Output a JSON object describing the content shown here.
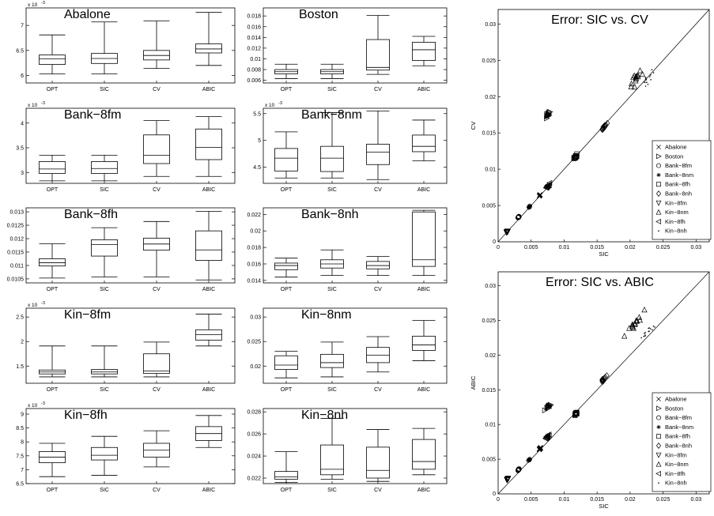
{
  "group_labels": [
    "OPT",
    "SIC",
    "CV",
    "ABIC"
  ],
  "box_panels": [
    {
      "title": "Abalone",
      "exp": "x 10",
      "exp_power": "-3",
      "ylim": [
        5.85,
        7.35
      ],
      "ticks": [
        6,
        6.5,
        7
      ],
      "tick_labels": [
        "6",
        "6.5",
        "7"
      ],
      "boxes": [
        {
          "min": 6.03,
          "q1": 6.22,
          "med": 6.33,
          "q3": 6.41,
          "max": 6.81
        },
        {
          "min": 6.03,
          "q1": 6.24,
          "med": 6.34,
          "q3": 6.44,
          "max": 7.07
        },
        {
          "min": 6.14,
          "q1": 6.31,
          "med": 6.4,
          "q3": 6.5,
          "max": 7.09
        },
        {
          "min": 6.2,
          "q1": 6.45,
          "med": 6.53,
          "q3": 6.63,
          "max": 7.26
        }
      ]
    },
    {
      "title": "Boston",
      "exp": "",
      "exp_power": "",
      "ylim": [
        0.0055,
        0.0195
      ],
      "ticks": [
        0.006,
        0.008,
        0.01,
        0.012,
        0.014,
        0.016,
        0.018
      ],
      "tick_labels": [
        "0.006",
        "0.008",
        "0.01",
        "0.012",
        "0.014",
        "0.016",
        "0.018"
      ],
      "boxes": [
        {
          "min": 0.0063,
          "q1": 0.0072,
          "med": 0.0076,
          "q3": 0.008,
          "max": 0.009
        },
        {
          "min": 0.0063,
          "q1": 0.0072,
          "med": 0.0076,
          "q3": 0.008,
          "max": 0.009
        },
        {
          "min": 0.0071,
          "q1": 0.0079,
          "med": 0.0084,
          "q3": 0.0136,
          "max": 0.0181
        },
        {
          "min": 0.0087,
          "q1": 0.0097,
          "med": 0.0117,
          "q3": 0.0131,
          "max": 0.0142
        }
      ]
    },
    {
      "title": "Bank−8fm",
      "exp": "x 10",
      "exp_power": "-3",
      "ylim": [
        2.78,
        4.3
      ],
      "ticks": [
        3,
        3.5,
        4
      ],
      "tick_labels": [
        "3",
        "3.5",
        "4"
      ],
      "boxes": [
        {
          "min": 2.83,
          "q1": 2.98,
          "med": 3.07,
          "q3": 3.22,
          "max": 3.35
        },
        {
          "min": 2.83,
          "q1": 2.98,
          "med": 3.08,
          "q3": 3.22,
          "max": 3.35
        },
        {
          "min": 2.92,
          "q1": 3.18,
          "med": 3.35,
          "q3": 3.76,
          "max": 4.05
        },
        {
          "min": 2.92,
          "q1": 3.26,
          "med": 3.51,
          "q3": 3.88,
          "max": 4.13
        }
      ]
    },
    {
      "title": "Bank−8nm",
      "exp": "x 10",
      "exp_power": "-3",
      "ylim": [
        4.2,
        5.6
      ],
      "ticks": [
        4.5,
        5,
        5.5
      ],
      "tick_labels": [
        "4.5",
        "5",
        "5.5"
      ],
      "boxes": [
        {
          "min": 4.3,
          "q1": 4.43,
          "med": 4.67,
          "q3": 4.85,
          "max": 5.16
        },
        {
          "min": 4.3,
          "q1": 4.42,
          "med": 4.67,
          "q3": 4.89,
          "max": 5.52
        },
        {
          "min": 4.27,
          "q1": 4.55,
          "med": 4.78,
          "q3": 4.93,
          "max": 5.55
        },
        {
          "min": 4.62,
          "q1": 4.79,
          "med": 4.89,
          "q3": 5.1,
          "max": 5.38
        }
      ]
    },
    {
      "title": "Bank−8fh",
      "exp": "",
      "exp_power": "",
      "ylim": [
        0.01035,
        0.01315
      ],
      "ticks": [
        0.0105,
        0.011,
        0.0115,
        0.012,
        0.0125,
        0.013
      ],
      "tick_labels": [
        "0.0105",
        "0.011",
        "0.0115",
        "0.012",
        "0.0125",
        "0.013"
      ],
      "boxes": [
        {
          "min": 0.01053,
          "q1": 0.01098,
          "med": 0.0111,
          "q3": 0.01125,
          "max": 0.01181
        },
        {
          "min": 0.01057,
          "q1": 0.01135,
          "med": 0.01178,
          "q3": 0.01196,
          "max": 0.01241
        },
        {
          "min": 0.01057,
          "q1": 0.01157,
          "med": 0.0118,
          "q3": 0.01202,
          "max": 0.01264
        },
        {
          "min": 0.01046,
          "q1": 0.01119,
          "med": 0.01158,
          "q3": 0.01229,
          "max": 0.01302
        }
      ]
    },
    {
      "title": "Bank−8nh",
      "exp": "",
      "exp_power": "",
      "ylim": [
        0.0137,
        0.0228
      ],
      "ticks": [
        0.014,
        0.016,
        0.018,
        0.02,
        0.022
      ],
      "tick_labels": [
        "0.014",
        "0.016",
        "0.018",
        "0.02",
        "0.022"
      ],
      "boxes": [
        {
          "min": 0.0144,
          "q1": 0.0153,
          "med": 0.0158,
          "q3": 0.0161,
          "max": 0.0167
        },
        {
          "min": 0.0146,
          "q1": 0.0155,
          "med": 0.016,
          "q3": 0.0165,
          "max": 0.0177
        },
        {
          "min": 0.0146,
          "q1": 0.0154,
          "med": 0.0158,
          "q3": 0.0163,
          "max": 0.0169
        },
        {
          "min": 0.0146,
          "q1": 0.0157,
          "med": 0.0165,
          "q3": 0.0223,
          "max": 0.0225
        }
      ]
    },
    {
      "title": "Kin−8fm",
      "exp": "x 10",
      "exp_power": "-3",
      "ylim": [
        1.15,
        2.68
      ],
      "ticks": [
        1.5,
        2,
        2.5
      ],
      "tick_labels": [
        "1.5",
        "2",
        "2.5"
      ],
      "boxes": [
        {
          "min": 1.28,
          "q1": 1.34,
          "med": 1.38,
          "q3": 1.42,
          "max": 1.91
        },
        {
          "min": 1.28,
          "q1": 1.34,
          "med": 1.38,
          "q3": 1.43,
          "max": 1.91
        },
        {
          "min": 1.28,
          "q1": 1.35,
          "med": 1.4,
          "q3": 1.75,
          "max": 1.99
        },
        {
          "min": 1.91,
          "q1": 2.03,
          "med": 2.14,
          "q3": 2.24,
          "max": 2.56
        }
      ]
    },
    {
      "title": "Kin−8nm",
      "exp": "",
      "exp_power": "",
      "ylim": [
        0.0165,
        0.0318
      ],
      "ticks": [
        0.02,
        0.025,
        0.03
      ],
      "tick_labels": [
        "0.02",
        "0.025",
        "0.03"
      ],
      "boxes": [
        {
          "min": 0.0176,
          "q1": 0.0193,
          "med": 0.0202,
          "q3": 0.0221,
          "max": 0.023
        },
        {
          "min": 0.0178,
          "q1": 0.0197,
          "med": 0.0207,
          "q3": 0.0224,
          "max": 0.0249
        },
        {
          "min": 0.0188,
          "q1": 0.0207,
          "med": 0.0222,
          "q3": 0.0238,
          "max": 0.026
        },
        {
          "min": 0.0211,
          "q1": 0.0232,
          "med": 0.0243,
          "q3": 0.0261,
          "max": 0.0293
        }
      ]
    },
    {
      "title": "Kin−8fh",
      "exp": "x 10",
      "exp_power": "-3",
      "ylim": [
        6.5,
        9.2
      ],
      "ticks": [
        6.5,
        7,
        7.5,
        8,
        8.5,
        9
      ],
      "tick_labels": [
        "6.5",
        "7",
        "7.5",
        "8",
        "8.5",
        "9"
      ],
      "boxes": [
        {
          "min": 6.75,
          "q1": 7.25,
          "med": 7.45,
          "q3": 7.65,
          "max": 7.95
        },
        {
          "min": 6.8,
          "q1": 7.35,
          "med": 7.52,
          "q3": 7.8,
          "max": 8.2
        },
        {
          "min": 7.1,
          "q1": 7.45,
          "med": 7.7,
          "q3": 7.95,
          "max": 8.4
        },
        {
          "min": 7.8,
          "q1": 8.05,
          "med": 8.3,
          "q3": 8.55,
          "max": 8.95
        }
      ]
    },
    {
      "title": "Kin−8nh",
      "exp": "",
      "exp_power": "",
      "ylim": [
        0.0215,
        0.0283
      ],
      "ticks": [
        0.022,
        0.024,
        0.026,
        0.028
      ],
      "tick_labels": [
        "0.022",
        "0.024",
        "0.026",
        "0.028"
      ],
      "boxes": [
        {
          "min": 0.0216,
          "q1": 0.0219,
          "med": 0.0221,
          "q3": 0.0226,
          "max": 0.0244
        },
        {
          "min": 0.0219,
          "q1": 0.0223,
          "med": 0.0228,
          "q3": 0.025,
          "max": 0.0274
        },
        {
          "min": 0.0217,
          "q1": 0.022,
          "med": 0.0227,
          "q3": 0.0248,
          "max": 0.0264
        },
        {
          "min": 0.0223,
          "q1": 0.0228,
          "med": 0.0235,
          "q3": 0.0255,
          "max": 0.0265
        }
      ]
    }
  ],
  "scatter_panels": [
    {
      "title": "Error:  SIC vs. CV",
      "xlabel": "SIC",
      "ylabel": "CV",
      "xlim": [
        0,
        0.032
      ],
      "ylim": [
        0,
        0.032
      ],
      "ticks": [
        0.005,
        0.01,
        0.015,
        0.02,
        0.025,
        0.03
      ],
      "tick_labels": [
        "0.005",
        "0.01",
        "0.015",
        "0.02",
        "0.025",
        "0.03"
      ]
    },
    {
      "title": "Error:  SIC vs. ABIC",
      "xlabel": "SIC",
      "ylabel": "ABIC",
      "xlim": [
        0,
        0.032
      ],
      "ylim": [
        0,
        0.032
      ],
      "ticks": [
        0.005,
        0.01,
        0.015,
        0.02,
        0.025,
        0.03
      ],
      "tick_labels": [
        "0.005",
        "0.01",
        "0.015",
        "0.02",
        "0.025",
        "0.03"
      ]
    }
  ],
  "legend": [
    {
      "symbol": "x",
      "label": "Abalone"
    },
    {
      "symbol": "tri-right",
      "label": "Boston"
    },
    {
      "symbol": "circle",
      "label": "Bank−8fm"
    },
    {
      "symbol": "star",
      "label": "Bank−8nm"
    },
    {
      "symbol": "square",
      "label": "Bank−8fh"
    },
    {
      "symbol": "diamond",
      "label": "Bank−8nh"
    },
    {
      "symbol": "tri-down",
      "label": "Kin−8fm"
    },
    {
      "symbol": "tri-up",
      "label": "Kin−8nm"
    },
    {
      "symbol": "tri-left",
      "label": "Kin−8fh"
    },
    {
      "symbol": "dot",
      "label": "Kin−8nh"
    }
  ],
  "chart_data": [
    {
      "type": "box",
      "title": "Abalone",
      "categories": [
        "OPT",
        "SIC",
        "CV",
        "ABIC"
      ],
      "ylabel": "x 10^-3",
      "series": [
        {
          "stat": "median",
          "values": [
            6.33,
            6.34,
            6.4,
            6.53
          ]
        }
      ]
    },
    {
      "type": "box",
      "title": "Boston",
      "categories": [
        "OPT",
        "SIC",
        "CV",
        "ABIC"
      ],
      "series": [
        {
          "stat": "median",
          "values": [
            0.0076,
            0.0076,
            0.0084,
            0.0117
          ]
        }
      ]
    },
    {
      "type": "box",
      "title": "Bank−8fm",
      "categories": [
        "OPT",
        "SIC",
        "CV",
        "ABIC"
      ],
      "ylabel": "x 10^-3",
      "series": [
        {
          "stat": "median",
          "values": [
            3.07,
            3.08,
            3.35,
            3.51
          ]
        }
      ]
    },
    {
      "type": "box",
      "title": "Bank−8nm",
      "categories": [
        "OPT",
        "SIC",
        "CV",
        "ABIC"
      ],
      "ylabel": "x 10^-3",
      "series": [
        {
          "stat": "median",
          "values": [
            4.67,
            4.67,
            4.78,
            4.89
          ]
        }
      ]
    },
    {
      "type": "box",
      "title": "Bank−8fh",
      "categories": [
        "OPT",
        "SIC",
        "CV",
        "ABIC"
      ],
      "series": [
        {
          "stat": "median",
          "values": [
            0.0111,
            0.01178,
            0.0118,
            0.01158
          ]
        }
      ]
    },
    {
      "type": "box",
      "title": "Bank−8nh",
      "categories": [
        "OPT",
        "SIC",
        "CV",
        "ABIC"
      ],
      "series": [
        {
          "stat": "median",
          "values": [
            0.0158,
            0.016,
            0.0158,
            0.0165
          ]
        }
      ]
    },
    {
      "type": "box",
      "title": "Kin−8fm",
      "categories": [
        "OPT",
        "SIC",
        "CV",
        "ABIC"
      ],
      "ylabel": "x 10^-3",
      "series": [
        {
          "stat": "median",
          "values": [
            1.38,
            1.38,
            1.4,
            2.14
          ]
        }
      ]
    },
    {
      "type": "box",
      "title": "Kin−8nm",
      "categories": [
        "OPT",
        "SIC",
        "CV",
        "ABIC"
      ],
      "series": [
        {
          "stat": "median",
          "values": [
            0.0202,
            0.0207,
            0.0222,
            0.0243
          ]
        }
      ]
    },
    {
      "type": "box",
      "title": "Kin−8fh",
      "categories": [
        "OPT",
        "SIC",
        "CV",
        "ABIC"
      ],
      "ylabel": "x 10^-3",
      "series": [
        {
          "stat": "median",
          "values": [
            7.45,
            7.52,
            7.7,
            8.3
          ]
        }
      ]
    },
    {
      "type": "box",
      "title": "Kin−8nh",
      "categories": [
        "OPT",
        "SIC",
        "CV",
        "ABIC"
      ],
      "series": [
        {
          "stat": "median",
          "values": [
            0.0221,
            0.0228,
            0.0227,
            0.0235
          ]
        }
      ]
    },
    {
      "type": "scatter",
      "title": "Error:  SIC vs. CV",
      "xlabel": "SIC",
      "ylabel": "CV",
      "xlim": [
        0,
        0.032
      ],
      "ylim": [
        0,
        0.032
      ],
      "reference_line": "y = x",
      "series": [
        {
          "name": "Abalone",
          "center": [
            0.0063,
            0.0064
          ]
        },
        {
          "name": "Boston",
          "center": [
            0.0076,
            0.0175
          ]
        },
        {
          "name": "Bank−8fm",
          "center": [
            0.0031,
            0.0034
          ]
        },
        {
          "name": "Bank−8nm",
          "center": [
            0.0047,
            0.0048
          ]
        },
        {
          "name": "Bank−8fh",
          "center": [
            0.0118,
            0.0118
          ]
        },
        {
          "name": "Bank−8nh",
          "center": [
            0.016,
            0.0158
          ]
        },
        {
          "name": "Kin−8fm",
          "center": [
            0.0014,
            0.0014
          ]
        },
        {
          "name": "Kin−8nm",
          "center": [
            0.0207,
            0.0222
          ]
        },
        {
          "name": "Kin−8fh",
          "center": [
            0.0075,
            0.0077
          ]
        },
        {
          "name": "Kin−8nh",
          "center": [
            0.0228,
            0.0227
          ]
        }
      ]
    },
    {
      "type": "scatter",
      "title": "Error:  SIC vs. ABIC",
      "xlabel": "SIC",
      "ylabel": "ABIC",
      "xlim": [
        0,
        0.032
      ],
      "ylim": [
        0,
        0.032
      ],
      "reference_line": "y = x",
      "series": [
        {
          "name": "Abalone",
          "center": [
            0.0063,
            0.0065
          ]
        },
        {
          "name": "Boston",
          "center": [
            0.0076,
            0.0125
          ]
        },
        {
          "name": "Bank−8fm",
          "center": [
            0.0031,
            0.0035
          ]
        },
        {
          "name": "Bank−8nm",
          "center": [
            0.0047,
            0.0049
          ]
        },
        {
          "name": "Bank−8fh",
          "center": [
            0.0118,
            0.0116
          ]
        },
        {
          "name": "Bank−8nh",
          "center": [
            0.016,
            0.0165
          ]
        },
        {
          "name": "Kin−8fm",
          "center": [
            0.0014,
            0.0021
          ]
        },
        {
          "name": "Kin−8nm",
          "center": [
            0.0207,
            0.0245
          ]
        },
        {
          "name": "Kin−8fh",
          "center": [
            0.0075,
            0.0083
          ]
        },
        {
          "name": "Kin−8nh",
          "center": [
            0.0228,
            0.0235
          ]
        }
      ]
    }
  ]
}
